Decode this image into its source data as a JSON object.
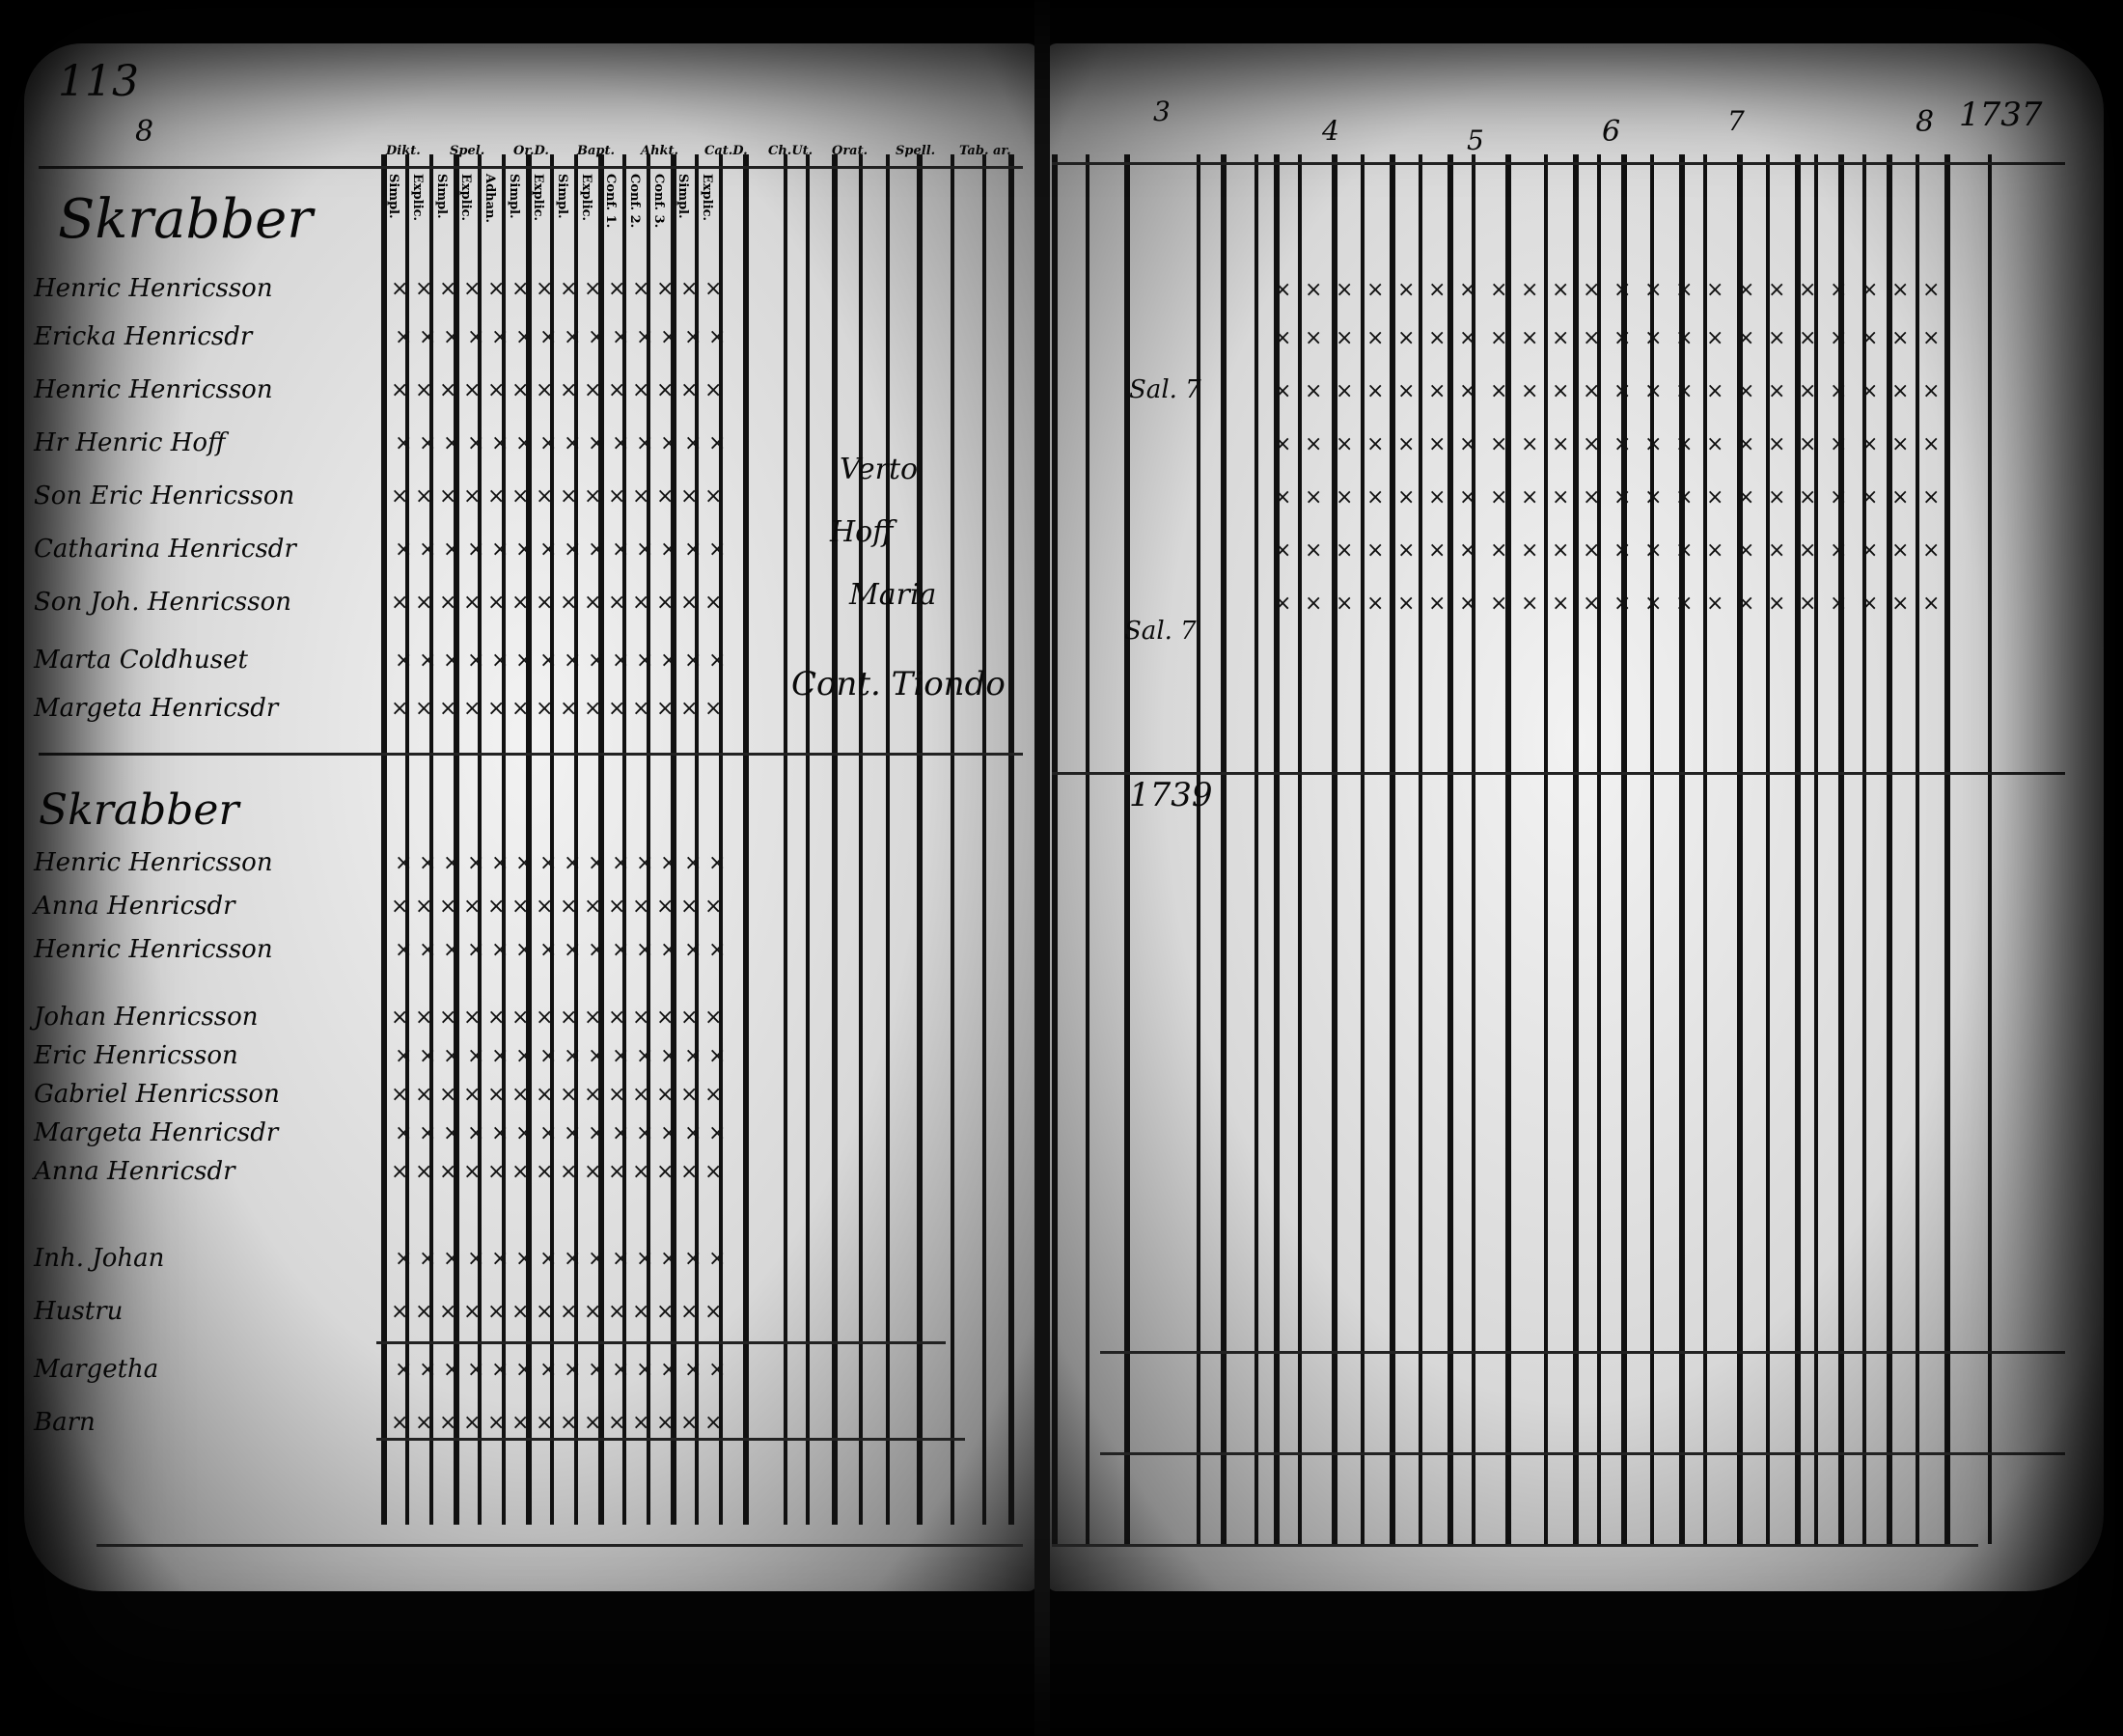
{
  "document": {
    "type": "microfilm scan of handwritten parish examination register",
    "left_page": {
      "page_number": "113",
      "column_number": "8",
      "section_heading_1": "Skrabber",
      "section_heading_2": "Skrabber",
      "column_headers": [
        "Dikt.",
        "Spel.",
        "Or.D.",
        "Bapt.",
        "Ahkt.",
        "Cat.D.",
        "Ch.Ut.",
        "Orat.",
        "Spell.",
        "Tab. ar."
      ],
      "sub_headers": [
        "Simpl.",
        "Explic.",
        "Simpl.",
        "Explic.",
        "Adhan.",
        "Simpl.",
        "Explic.",
        "Simpl.",
        "Explic.",
        "Conf. 1.",
        "Conf. 2.",
        "Conf. 3.",
        "Simpl.",
        "Explic."
      ],
      "names": [
        "Henric Henricsson",
        "Ericka Henricsdr",
        "Henric Henricsson",
        "Hr Henric Hoff",
        "Son Eric Henricsson",
        "Catharina Henricsdr",
        "Son Joh. Henricsson",
        "Marta Coldhuset",
        "Margeta Henricsdr",
        "Henric Henricsson",
        "Anna Henricsdr",
        "Henric Henricsson",
        "Johan Henricsson",
        "Eric Henricsson",
        "Gabriel Henricsson",
        "Margeta Henricsdr",
        "Anna Henricsdr",
        "Inh. Johan",
        "Hustru",
        "Margetha",
        "Barn"
      ],
      "notes": [
        "Verto",
        "Hoff",
        "Maria",
        "Cont. Tiondo"
      ]
    },
    "right_page": {
      "year_header": "1737",
      "date_note": "8",
      "column_numbers": [
        "3",
        "4",
        "5",
        "6",
        "7"
      ],
      "year_mid": "1739",
      "notes": [
        "Sal. 7",
        "Sal. 7"
      ]
    }
  }
}
